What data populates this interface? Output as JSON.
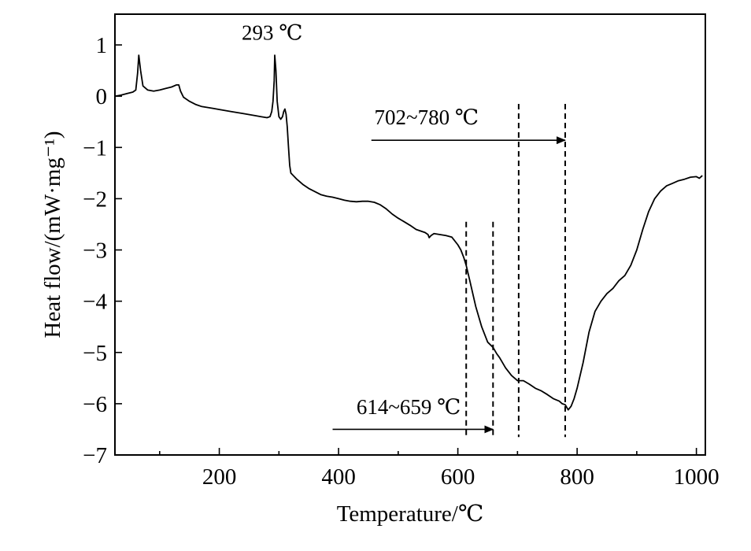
{
  "chart_data": {
    "type": "line",
    "xlabel": "Temperature/℃",
    "ylabel": "Heat flow/(mW·mg⁻¹)",
    "xlim": [
      25,
      1015
    ],
    "ylim": [
      -7,
      1.6
    ],
    "xticks": [
      {
        "value": 200,
        "label": "200"
      },
      {
        "value": 400,
        "label": "400"
      },
      {
        "value": 600,
        "label": "600"
      },
      {
        "value": 800,
        "label": "800"
      },
      {
        "value": 1000,
        "label": "1000"
      }
    ],
    "xminor": [
      100,
      300,
      500,
      700,
      900
    ],
    "yticks": [
      {
        "value": 1,
        "label": "1"
      },
      {
        "value": 0,
        "label": "0"
      },
      {
        "value": -1,
        "label": "−1"
      },
      {
        "value": -2,
        "label": "−2"
      },
      {
        "value": -3,
        "label": "−3"
      },
      {
        "value": -4,
        "label": "−4"
      },
      {
        "value": -5,
        "label": "−5"
      },
      {
        "value": -6,
        "label": "−6"
      },
      {
        "value": -7,
        "label": "−7"
      }
    ],
    "series": [
      {
        "x": [
          25,
          35,
          45,
          55,
          60,
          63,
          65,
          68,
          72,
          80,
          90,
          100,
          110,
          120,
          128,
          132,
          135,
          140,
          150,
          160,
          170,
          180,
          190,
          200,
          220,
          240,
          260,
          270,
          280,
          285,
          288,
          290,
          292,
          293,
          295,
          297,
          300,
          303,
          306,
          308,
          310,
          312,
          314,
          316,
          318,
          320,
          330,
          340,
          350,
          360,
          370,
          380,
          390,
          400,
          410,
          420,
          430,
          440,
          450,
          460,
          470,
          480,
          490,
          500,
          510,
          520,
          530,
          540,
          545,
          550,
          552,
          555,
          560,
          570,
          580,
          590,
          600,
          605,
          610,
          614,
          620,
          630,
          640,
          650,
          659,
          665,
          670,
          680,
          690,
          700,
          705,
          710,
          720,
          730,
          740,
          750,
          760,
          770,
          775,
          780,
          785,
          790,
          795,
          800,
          810,
          820,
          830,
          840,
          850,
          860,
          870,
          880,
          890,
          900,
          910,
          920,
          930,
          940,
          950,
          960,
          970,
          980,
          990,
          1000,
          1005,
          1010
        ],
        "y": [
          0,
          0.02,
          0.05,
          0.08,
          0.12,
          0.45,
          0.8,
          0.5,
          0.2,
          0.12,
          0.1,
          0.12,
          0.15,
          0.18,
          0.22,
          0.22,
          0.1,
          -0.02,
          -0.1,
          -0.16,
          -0.2,
          -0.22,
          -0.24,
          -0.26,
          -0.3,
          -0.34,
          -0.38,
          -0.4,
          -0.42,
          -0.4,
          -0.3,
          -0.1,
          0.3,
          0.8,
          0.5,
          -0.1,
          -0.4,
          -0.45,
          -0.4,
          -0.3,
          -0.25,
          -0.35,
          -0.6,
          -1.0,
          -1.35,
          -1.5,
          -1.62,
          -1.72,
          -1.8,
          -1.86,
          -1.92,
          -1.95,
          -1.97,
          -2.0,
          -2.03,
          -2.05,
          -2.06,
          -2.05,
          -2.05,
          -2.07,
          -2.12,
          -2.2,
          -2.3,
          -2.38,
          -2.45,
          -2.52,
          -2.6,
          -2.64,
          -2.66,
          -2.7,
          -2.76,
          -2.72,
          -2.68,
          -2.7,
          -2.72,
          -2.75,
          -2.9,
          -3.0,
          -3.15,
          -3.3,
          -3.6,
          -4.1,
          -4.5,
          -4.8,
          -4.9,
          -5.02,
          -5.1,
          -5.3,
          -5.45,
          -5.55,
          -5.55,
          -5.55,
          -5.62,
          -5.7,
          -5.75,
          -5.82,
          -5.9,
          -5.95,
          -6.0,
          -6.02,
          -6.12,
          -6.05,
          -5.9,
          -5.7,
          -5.2,
          -4.6,
          -4.2,
          -4.0,
          -3.85,
          -3.75,
          -3.6,
          -3.5,
          -3.3,
          -3.0,
          -2.6,
          -2.25,
          -2.0,
          -1.85,
          -1.75,
          -1.7,
          -1.65,
          -1.62,
          -1.58,
          -1.57,
          -1.6,
          -1.55
        ]
      }
    ],
    "vlines": [
      614,
      659,
      702,
      780
    ],
    "annotations": [
      {
        "text": "293 ℃",
        "x": 293,
        "y": 1.1
      },
      {
        "text": "702~780 ℃",
        "x": 460,
        "y": -0.55
      },
      {
        "text": "614~659 ℃",
        "x": 430,
        "y": -6.2
      }
    ],
    "arrows": [
      {
        "x1": 455,
        "x2": 780,
        "y": -0.86
      },
      {
        "x1": 390,
        "x2": 659,
        "y": -6.5
      }
    ]
  }
}
